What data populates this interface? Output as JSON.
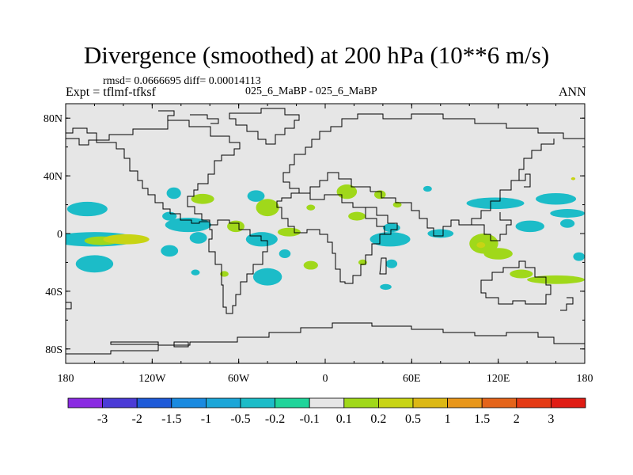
{
  "title": "Divergence (smoothed) at 200 hPa (10**6 m/s)",
  "stats": "rmsd= 0.0666695 diff= 0.00014113",
  "case_label": "025_6_MaBP - 025_6_MaBP",
  "expt_label": "Expt = tflmf-tfksf",
  "season": "ANN",
  "chart_data": {
    "type": "heatmap",
    "projection": "cylindrical-equidistant",
    "title": "Divergence (smoothed) at 200 hPa (10**6 m/s)",
    "variable": "Divergence (smoothed)",
    "level": "200 hPa",
    "units": "10**6 m/s",
    "xlim": [
      -180,
      180
    ],
    "ylim": [
      -90,
      90
    ],
    "x_ticks": [
      {
        "value": -180,
        "label": "180"
      },
      {
        "value": -120,
        "label": "120W"
      },
      {
        "value": -60,
        "label": "60W"
      },
      {
        "value": 0,
        "label": "0"
      },
      {
        "value": 60,
        "label": "60E"
      },
      {
        "value": 120,
        "label": "120E"
      },
      {
        "value": 180,
        "label": "180"
      }
    ],
    "y_ticks": [
      {
        "value": 80,
        "label": "80N"
      },
      {
        "value": 40,
        "label": "40N"
      },
      {
        "value": 0,
        "label": "0"
      },
      {
        "value": -40,
        "label": "40S"
      },
      {
        "value": -80,
        "label": "80S"
      }
    ],
    "colorbar": {
      "labels": [
        "-3",
        "-2",
        "-1.5",
        "-1",
        "-0.5",
        "-0.2",
        "-0.1",
        "0.1",
        "0.2",
        "0.5",
        "1",
        "1.5",
        "2",
        "3"
      ],
      "colors": [
        "#8a2be2",
        "#4b3bd6",
        "#1e5ad8",
        "#1a8ae0",
        "#1ca6d8",
        "#1cbcc8",
        "#20d49a",
        "#e6e6e6",
        "#a0d81a",
        "#c8d414",
        "#dcb814",
        "#e8961a",
        "#e4641a",
        "#e43a14",
        "#e01c14"
      ]
    },
    "regions": [
      {
        "lon": -165,
        "lat": 17,
        "rlon": 14,
        "rlat": 5,
        "level": -0.2
      },
      {
        "lon": -160,
        "lat": -4,
        "rlon": 30,
        "rlat": 5,
        "level": -0.2
      },
      {
        "lon": -155,
        "lat": -5,
        "rlon": 12,
        "rlat": 3,
        "level": 0.2
      },
      {
        "lon": -138,
        "lat": -4,
        "rlon": 16,
        "rlat": 3.5,
        "level": 0.5
      },
      {
        "lon": -160,
        "lat": -21,
        "rlon": 13,
        "rlat": 6,
        "level": -0.2
      },
      {
        "lon": -105,
        "lat": 28,
        "rlon": 5,
        "rlat": 4,
        "level": -0.2
      },
      {
        "lon": -85,
        "lat": 24,
        "rlon": 8,
        "rlat": 3.5,
        "level": 0.2
      },
      {
        "lon": -48,
        "lat": 26,
        "rlon": 6,
        "rlat": 4,
        "level": -0.2
      },
      {
        "lon": -95,
        "lat": 6,
        "rlon": 16,
        "rlat": 5,
        "level": -0.2
      },
      {
        "lon": -108,
        "lat": -12,
        "rlon": 6,
        "rlat": 4,
        "level": -0.2
      },
      {
        "lon": -88,
        "lat": -3,
        "rlon": 6,
        "rlat": 4,
        "level": -0.2
      },
      {
        "lon": -108,
        "lat": 12,
        "rlon": 5,
        "rlat": 3,
        "level": -0.2
      },
      {
        "lon": -40,
        "lat": 18,
        "rlon": 8,
        "rlat": 6,
        "level": 0.2
      },
      {
        "lon": -62,
        "lat": 5,
        "rlon": 6,
        "rlat": 4,
        "level": 0.2
      },
      {
        "lon": -44,
        "lat": -4,
        "rlon": 11,
        "rlat": 5,
        "level": -0.2
      },
      {
        "lon": -28,
        "lat": -14,
        "rlon": 4,
        "rlat": 3,
        "level": -0.2
      },
      {
        "lon": -40,
        "lat": -30,
        "rlon": 10,
        "rlat": 6,
        "level": -0.2
      },
      {
        "lon": -90,
        "lat": -27,
        "rlon": 3,
        "rlat": 2,
        "level": -0.2
      },
      {
        "lon": -70,
        "lat": -28,
        "rlon": 3,
        "rlat": 2,
        "level": 0.2
      },
      {
        "lon": -25,
        "lat": 1,
        "rlon": 8,
        "rlat": 3,
        "level": 0.2
      },
      {
        "lon": -10,
        "lat": 18,
        "rlon": 3,
        "rlat": 2,
        "level": 0.2
      },
      {
        "lon": -10,
        "lat": -22,
        "rlon": 5,
        "rlat": 3,
        "level": 0.2
      },
      {
        "lon": 15,
        "lat": 29,
        "rlon": 7,
        "rlat": 5,
        "level": 0.2
      },
      {
        "lon": 38,
        "lat": 27,
        "rlon": 4,
        "rlat": 3,
        "level": 0.2
      },
      {
        "lon": 22,
        "lat": 12,
        "rlon": 6,
        "rlat": 3,
        "level": 0.2
      },
      {
        "lon": 50,
        "lat": 20,
        "rlon": 3,
        "rlat": 2,
        "level": 0.2
      },
      {
        "lon": 26,
        "lat": -20,
        "rlon": 3,
        "rlat": 2,
        "level": 0.2
      },
      {
        "lon": 45,
        "lat": -4,
        "rlon": 14,
        "rlat": 5,
        "level": -0.2
      },
      {
        "lon": 46,
        "lat": 4,
        "rlon": 6,
        "rlat": 3,
        "level": -0.2
      },
      {
        "lon": 46,
        "lat": -21,
        "rlon": 4,
        "rlat": 3,
        "level": -0.2
      },
      {
        "lon": 42,
        "lat": -37,
        "rlon": 4,
        "rlat": 2,
        "level": -0.2
      },
      {
        "lon": 71,
        "lat": 31,
        "rlon": 3,
        "rlat": 2,
        "level": -0.2
      },
      {
        "lon": 80,
        "lat": 0,
        "rlon": 9,
        "rlat": 3,
        "level": -0.2
      },
      {
        "lon": 110,
        "lat": -7,
        "rlon": 10,
        "rlat": 7,
        "level": 0.2
      },
      {
        "lon": 108,
        "lat": -8,
        "rlon": 3,
        "rlat": 2,
        "level": 0.5
      },
      {
        "lon": 120,
        "lat": -14,
        "rlon": 10,
        "rlat": 4,
        "level": 0.2
      },
      {
        "lon": 136,
        "lat": -28,
        "rlon": 8,
        "rlat": 3,
        "level": 0.2
      },
      {
        "lon": 160,
        "lat": -32,
        "rlon": 20,
        "rlat": 3,
        "level": 0.2
      },
      {
        "lon": 118,
        "lat": 21,
        "rlon": 20,
        "rlat": 4,
        "level": -0.2
      },
      {
        "lon": 142,
        "lat": 5,
        "rlon": 10,
        "rlat": 4,
        "level": -0.2
      },
      {
        "lon": 160,
        "lat": 24,
        "rlon": 14,
        "rlat": 4,
        "level": -0.2
      },
      {
        "lon": 168,
        "lat": 14,
        "rlon": 12,
        "rlat": 3,
        "level": -0.2
      },
      {
        "lon": 176,
        "lat": -16,
        "rlon": 4,
        "rlat": 3,
        "level": -0.2
      },
      {
        "lon": 168,
        "lat": 7,
        "rlon": 5,
        "rlat": 3,
        "level": -0.2
      },
      {
        "lon": 172,
        "lat": 38,
        "rlon": 1.5,
        "rlat": 1,
        "level": 0.5
      }
    ]
  }
}
